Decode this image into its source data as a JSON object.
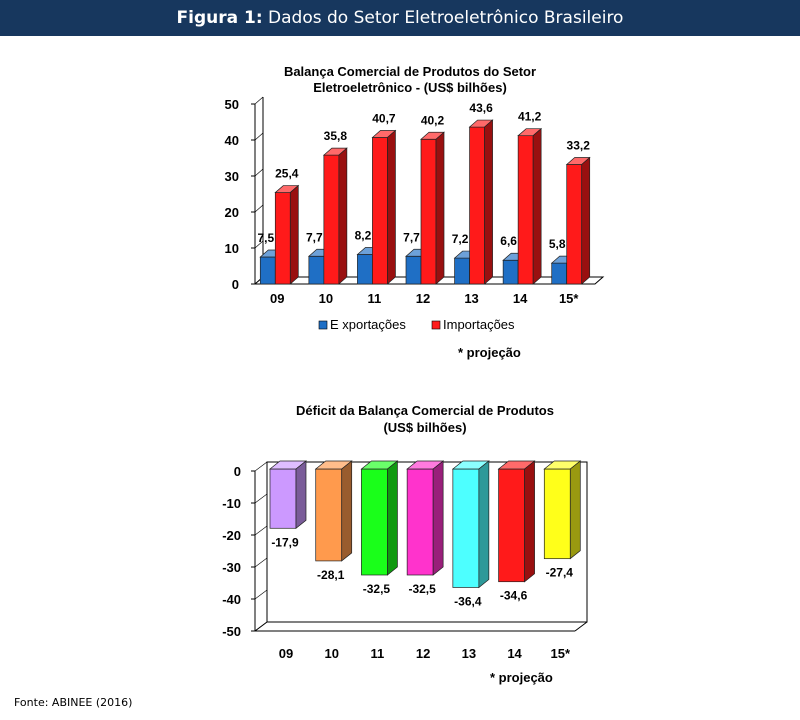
{
  "header": {
    "figure_label": "Figura 1:",
    "title": "Dados do Setor Eletroeletrônico Brasileiro"
  },
  "footer": {
    "source": "Fonte: ABINEE (2016)"
  },
  "chart_data": [
    {
      "type": "bar",
      "title_line1": "Balança  Comercial de Produtos do Setor",
      "title_line2": "Eletroeletrônico - (US$  bilhões)",
      "categories": [
        "09",
        "10",
        "11",
        "12",
        "13",
        "14",
        "15*"
      ],
      "series": [
        {
          "name": "E xportações",
          "color": "#1f6fc5",
          "values": [
            7.5,
            7.7,
            8.2,
            7.7,
            7.2,
            6.6,
            5.8
          ],
          "labels": [
            "7,5",
            "7,7",
            "8,2",
            "7,7",
            "7,2",
            "6,6",
            "5,8"
          ]
        },
        {
          "name": "Importações",
          "color": "#ff1a1a",
          "values": [
            25.4,
            35.8,
            40.7,
            40.2,
            43.6,
            41.2,
            33.2
          ],
          "labels": [
            "25,4",
            "35,8",
            "40,7",
            "40,2",
            "43,6",
            "41,2",
            "33,2"
          ]
        }
      ],
      "ylim": [
        0,
        50
      ],
      "yticks": [
        "0",
        "10",
        "20",
        "30",
        "40",
        "50"
      ],
      "ytick_values": [
        0,
        10,
        20,
        30,
        40,
        50
      ],
      "note": "* projeção"
    },
    {
      "type": "bar",
      "title_line1": "Déficit da Balança  Comercial de Produtos",
      "title_line2": "(US$  bilhões)",
      "categories": [
        "09",
        "10",
        "11",
        "12",
        "13",
        "14",
        "15*"
      ],
      "values": [
        -17.9,
        -28.1,
        -32.5,
        -32.5,
        -36.4,
        -34.6,
        -27.4
      ],
      "labels": [
        "-17,9",
        "-28,1",
        "-32,5",
        "-32,5",
        "-36,4",
        "-34,6",
        "-27,4"
      ],
      "colors": [
        "#cc99ff",
        "#ff9a4d",
        "#1aff1a",
        "#ff33cc",
        "#4dffff",
        "#ff1a1a",
        "#ffff1a"
      ],
      "ylim": [
        -50,
        0
      ],
      "yticks": [
        "0",
        "-10",
        "-20",
        "-30",
        "-40",
        "-50"
      ],
      "ytick_values": [
        0,
        -10,
        -20,
        -30,
        -40,
        -50
      ],
      "note": "* projeção"
    }
  ]
}
